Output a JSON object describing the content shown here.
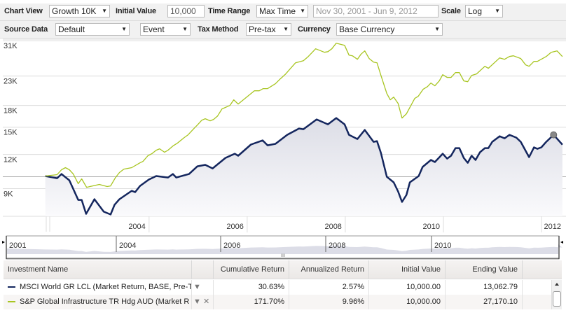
{
  "toolbar": {
    "chart_view_label": "Chart View",
    "chart_view_value": "Growth 10K",
    "initial_value_label": "Initial Value",
    "initial_value": "10,000",
    "time_range_label": "Time Range",
    "time_range_value": "Max Time",
    "date_range": "Nov 30, 2001 - Jun 9, 2012",
    "scale_label": "Scale",
    "scale_value": "Log",
    "source_data_label": "Source Data",
    "source_data_value": "Default",
    "event_value": "Event",
    "tax_method_label": "Tax Method",
    "tax_method_value": "Pre-tax",
    "currency_label": "Currency",
    "currency_value": "Base Currency",
    "dropdown_icon": "▼"
  },
  "chart_data": {
    "type": "line",
    "scale": "log",
    "grid": true,
    "ylim": [
      7.2,
      31.2
    ],
    "xlim": [
      2001.09,
      2012.47
    ],
    "y_ticks": [
      {
        "v": 31,
        "label": "31K"
      },
      {
        "v": 23.1,
        "label": "23K"
      },
      {
        "v": 18.1,
        "label": "18K"
      },
      {
        "v": 15.1,
        "label": "15K"
      },
      {
        "v": 12.04,
        "label": "12K"
      },
      {
        "v": 9.06,
        "label": "9K"
      }
    ],
    "baseline": 10,
    "x_ticks": [
      {
        "v": 2004,
        "label": "2004"
      },
      {
        "v": 2006,
        "label": "2006"
      },
      {
        "v": 2008,
        "label": "2008"
      },
      {
        "v": 2010,
        "label": "2010"
      },
      {
        "v": 2012,
        "label": "2012"
      }
    ],
    "series": [
      {
        "name": "MSCI World GR LCL (Market Return, BASE, Pre-T",
        "color": "#14265e",
        "area": true,
        "points": [
          [
            2001.9,
            10.06
          ],
          [
            2002.14,
            9.88
          ],
          [
            2002.23,
            10.23
          ],
          [
            2002.39,
            9.71
          ],
          [
            2002.57,
            8.25
          ],
          [
            2002.64,
            8.25
          ],
          [
            2002.73,
            7.35
          ],
          [
            2002.9,
            8.3
          ],
          [
            2003.09,
            7.48
          ],
          [
            2003.23,
            7.31
          ],
          [
            2003.31,
            7.92
          ],
          [
            2003.41,
            8.3
          ],
          [
            2003.66,
            8.9
          ],
          [
            2003.73,
            8.8
          ],
          [
            2003.83,
            9.27
          ],
          [
            2004.01,
            9.77
          ],
          [
            2004.16,
            10.06
          ],
          [
            2004.4,
            9.94
          ],
          [
            2004.5,
            10.23
          ],
          [
            2004.57,
            9.94
          ],
          [
            2004.83,
            10.23
          ],
          [
            2005.0,
            10.91
          ],
          [
            2005.16,
            11.04
          ],
          [
            2005.31,
            10.72
          ],
          [
            2005.57,
            11.7
          ],
          [
            2005.76,
            12.11
          ],
          [
            2005.83,
            11.91
          ],
          [
            2006.09,
            13.07
          ],
          [
            2006.33,
            13.53
          ],
          [
            2006.43,
            12.99
          ],
          [
            2006.59,
            13.15
          ],
          [
            2006.83,
            14.17
          ],
          [
            2007.07,
            14.94
          ],
          [
            2007.16,
            14.85
          ],
          [
            2007.43,
            16.11
          ],
          [
            2007.66,
            15.47
          ],
          [
            2007.83,
            16.3
          ],
          [
            2008.0,
            15.47
          ],
          [
            2008.09,
            14.17
          ],
          [
            2008.26,
            13.69
          ],
          [
            2008.41,
            14.76
          ],
          [
            2008.59,
            13.37
          ],
          [
            2008.66,
            13.45
          ],
          [
            2008.74,
            12.19
          ],
          [
            2008.86,
            10.0
          ],
          [
            2009.0,
            9.55
          ],
          [
            2009.09,
            8.85
          ],
          [
            2009.17,
            8.11
          ],
          [
            2009.26,
            8.6
          ],
          [
            2009.33,
            9.55
          ],
          [
            2009.51,
            10.06
          ],
          [
            2009.59,
            10.85
          ],
          [
            2009.76,
            11.5
          ],
          [
            2009.84,
            11.3
          ],
          [
            2010.0,
            12.11
          ],
          [
            2010.09,
            11.63
          ],
          [
            2010.17,
            11.91
          ],
          [
            2010.26,
            12.69
          ],
          [
            2010.34,
            12.69
          ],
          [
            2010.43,
            11.7
          ],
          [
            2010.51,
            11.23
          ],
          [
            2010.59,
            11.91
          ],
          [
            2010.67,
            11.5
          ],
          [
            2010.76,
            12.26
          ],
          [
            2010.86,
            12.69
          ],
          [
            2010.93,
            12.69
          ],
          [
            2011.01,
            13.37
          ],
          [
            2011.16,
            14.01
          ],
          [
            2011.26,
            13.77
          ],
          [
            2011.36,
            14.17
          ],
          [
            2011.5,
            13.85
          ],
          [
            2011.59,
            13.37
          ],
          [
            2011.76,
            11.77
          ],
          [
            2011.86,
            12.77
          ],
          [
            2011.93,
            12.62
          ],
          [
            2012.01,
            12.77
          ],
          [
            2012.11,
            13.37
          ],
          [
            2012.26,
            14.17
          ],
          [
            2012.44,
            13.06
          ]
        ],
        "marker": [
          2012.26,
          14.17
        ]
      },
      {
        "name": "S&P Global Infrastructure TR Hdg AUD (Market R",
        "color": "#a8c521",
        "area": false,
        "points": [
          [
            2001.9,
            10.06
          ],
          [
            2002.14,
            10.18
          ],
          [
            2002.23,
            10.6
          ],
          [
            2002.31,
            10.79
          ],
          [
            2002.39,
            10.6
          ],
          [
            2002.47,
            10.23
          ],
          [
            2002.57,
            9.44
          ],
          [
            2002.64,
            9.83
          ],
          [
            2002.74,
            9.16
          ],
          [
            2003.0,
            9.38
          ],
          [
            2003.16,
            9.22
          ],
          [
            2003.23,
            9.27
          ],
          [
            2003.33,
            9.94
          ],
          [
            2003.41,
            10.36
          ],
          [
            2003.5,
            10.66
          ],
          [
            2003.66,
            10.79
          ],
          [
            2003.83,
            11.23
          ],
          [
            2003.89,
            11.36
          ],
          [
            2003.99,
            11.91
          ],
          [
            2004.07,
            12.11
          ],
          [
            2004.16,
            12.47
          ],
          [
            2004.23,
            12.62
          ],
          [
            2004.33,
            12.26
          ],
          [
            2004.4,
            12.47
          ],
          [
            2004.5,
            12.91
          ],
          [
            2004.59,
            13.22
          ],
          [
            2004.73,
            13.85
          ],
          [
            2004.81,
            14.17
          ],
          [
            2004.93,
            14.94
          ],
          [
            2005.0,
            15.38
          ],
          [
            2005.09,
            16.01
          ],
          [
            2005.16,
            16.2
          ],
          [
            2005.26,
            15.92
          ],
          [
            2005.33,
            16.11
          ],
          [
            2005.41,
            16.58
          ],
          [
            2005.5,
            17.58
          ],
          [
            2005.66,
            18.09
          ],
          [
            2005.74,
            18.96
          ],
          [
            2005.83,
            18.31
          ],
          [
            2005.97,
            19.18
          ],
          [
            2006.16,
            20.44
          ],
          [
            2006.26,
            20.44
          ],
          [
            2006.34,
            20.81
          ],
          [
            2006.43,
            20.81
          ],
          [
            2006.59,
            21.67
          ],
          [
            2006.69,
            22.57
          ],
          [
            2006.8,
            23.51
          ],
          [
            2006.9,
            24.63
          ],
          [
            2007.0,
            25.8
          ],
          [
            2007.16,
            26.25
          ],
          [
            2007.26,
            27.18
          ],
          [
            2007.41,
            28.98
          ],
          [
            2007.59,
            28.15
          ],
          [
            2007.66,
            28.3
          ],
          [
            2007.74,
            28.98
          ],
          [
            2007.83,
            30.35
          ],
          [
            2008.0,
            29.83
          ],
          [
            2008.09,
            27.5
          ],
          [
            2008.16,
            27.34
          ],
          [
            2008.26,
            26.56
          ],
          [
            2008.33,
            27.66
          ],
          [
            2008.41,
            28.48
          ],
          [
            2008.5,
            26.72
          ],
          [
            2008.59,
            25.94
          ],
          [
            2008.66,
            25.79
          ],
          [
            2008.74,
            23.23
          ],
          [
            2008.86,
            19.98
          ],
          [
            2008.93,
            18.96
          ],
          [
            2009.0,
            19.4
          ],
          [
            2009.09,
            18.41
          ],
          [
            2009.17,
            16.3
          ],
          [
            2009.26,
            16.88
          ],
          [
            2009.43,
            19.18
          ],
          [
            2009.5,
            19.52
          ],
          [
            2009.6,
            20.69
          ],
          [
            2009.69,
            21.17
          ],
          [
            2009.76,
            21.8
          ],
          [
            2009.84,
            21.3
          ],
          [
            2009.93,
            22.18
          ],
          [
            2010.0,
            23.37
          ],
          [
            2010.09,
            22.84
          ],
          [
            2010.17,
            22.84
          ],
          [
            2010.26,
            23.78
          ],
          [
            2010.34,
            23.78
          ],
          [
            2010.43,
            22.18
          ],
          [
            2010.51,
            22.04
          ],
          [
            2010.59,
            23.23
          ],
          [
            2010.69,
            23.51
          ],
          [
            2010.86,
            25.06
          ],
          [
            2010.93,
            24.63
          ],
          [
            2011.16,
            26.86
          ],
          [
            2011.26,
            26.56
          ],
          [
            2011.36,
            27.18
          ],
          [
            2011.44,
            27.34
          ],
          [
            2011.59,
            26.72
          ],
          [
            2011.69,
            25.35
          ],
          [
            2011.76,
            25.06
          ],
          [
            2011.86,
            26.1
          ],
          [
            2011.93,
            26.1
          ],
          [
            2012.11,
            27.18
          ],
          [
            2012.21,
            28.15
          ],
          [
            2012.33,
            28.48
          ],
          [
            2012.44,
            27.17
          ]
        ]
      }
    ]
  },
  "navigator": {
    "labels": [
      "2001",
      "2004",
      "2006",
      "2008",
      "2010"
    ],
    "handle": "IIII"
  },
  "table": {
    "headers": [
      "Investment Name",
      "",
      "Cumulative Return",
      "Annualized Return",
      "Initial Value",
      "Ending Value"
    ],
    "rows": [
      {
        "name": "MSCI World GR LCL (Market Return, BASE, Pre-T",
        "color": "#14265e",
        "cumulative": "30.63%",
        "annualized": "2.57%",
        "initial": "10,000.00",
        "ending": "13,062.79",
        "menu_icon": "▼",
        "remove_icon": ""
      },
      {
        "name": "S&P Global Infrastructure TR Hdg AUD (Market R",
        "color": "#a8c521",
        "cumulative": "171.70%",
        "annualized": "9.96%",
        "initial": "10,000.00",
        "ending": "27,170.10",
        "menu_icon": "▼",
        "remove_icon": "✕"
      }
    ]
  }
}
